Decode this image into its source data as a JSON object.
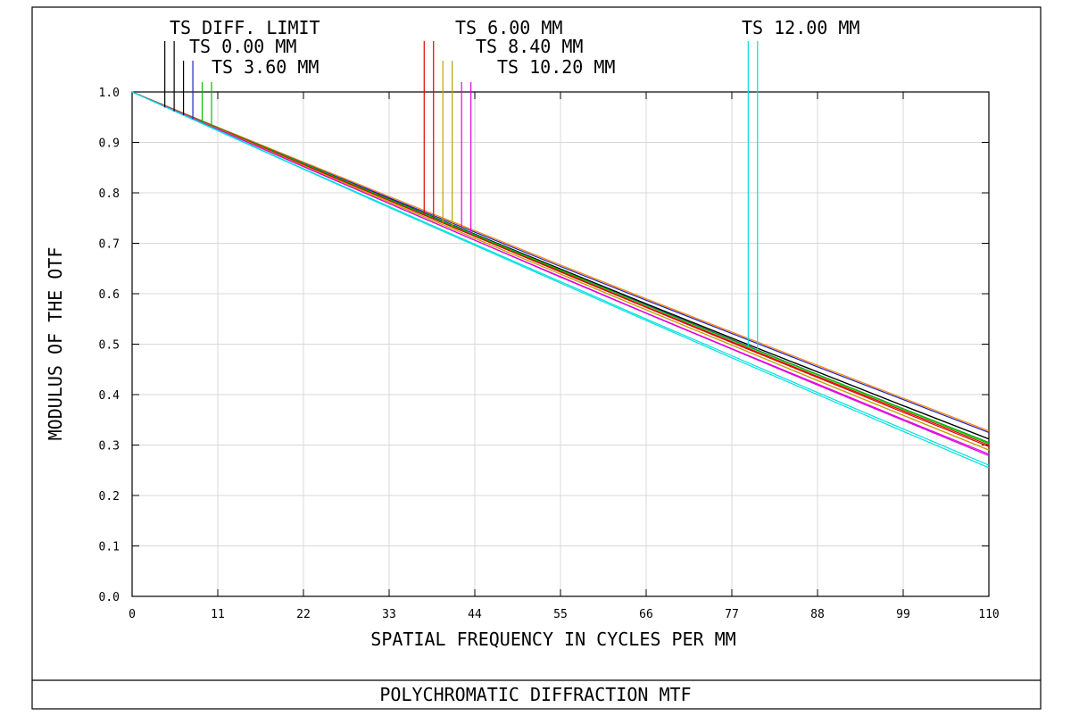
{
  "footer_title": "POLYCHROMATIC DIFFRACTION MTF",
  "chart_data": {
    "type": "line",
    "xlabel": "SPATIAL FREQUENCY IN CYCLES PER MM",
    "ylabel": "MODULUS OF THE OTF",
    "xlim": [
      0,
      110
    ],
    "ylim": [
      0,
      1.0
    ],
    "x_ticks": [
      "0",
      "11",
      "22",
      "33",
      "44",
      "55",
      "66",
      "77",
      "88",
      "99",
      "110"
    ],
    "y_ticks": [
      "0.0",
      "0.1",
      "0.2",
      "0.3",
      "0.4",
      "0.5",
      "0.6",
      "0.7",
      "0.8",
      "0.9",
      "1.0"
    ],
    "grid": true,
    "legend": [
      {
        "label": "TS DIFF. LIMIT",
        "color": "#000000"
      },
      {
        "label": "TS 0.00 MM",
        "color": "#000000"
      },
      {
        "label": "TS 3.60 MM",
        "color": "#2020c0"
      },
      {
        "label": "TS 6.00 MM",
        "color": "#00c000"
      },
      {
        "label": "TS 8.40 MM",
        "color": "#e00000"
      },
      {
        "label": "TS 10.20 MM",
        "color": "#c0a000"
      },
      {
        "label": "TS 12.00 MM",
        "color": "#e000e0"
      }
    ],
    "x": [
      0,
      11,
      22,
      33,
      44,
      55,
      66,
      77,
      88,
      99,
      110
    ],
    "series": [
      {
        "color": "#000000",
        "values": [
          1.0,
          0.929,
          0.858,
          0.788,
          0.718,
          0.649,
          0.58,
          0.512,
          0.445,
          0.378,
          0.312
        ]
      },
      {
        "color": "#000000",
        "values": [
          1.0,
          0.929,
          0.858,
          0.788,
          0.718,
          0.649,
          0.58,
          0.512,
          0.445,
          0.378,
          0.312
        ]
      },
      {
        "color": "#ff8000",
        "values": [
          1.0,
          0.93,
          0.861,
          0.793,
          0.725,
          0.657,
          0.59,
          0.524,
          0.458,
          0.393,
          0.328
        ]
      },
      {
        "color": "#2020c0",
        "values": [
          1.0,
          0.929,
          0.859,
          0.79,
          0.722,
          0.654,
          0.587,
          0.521,
          0.455,
          0.39,
          0.325
        ]
      },
      {
        "color": "#2020c0",
        "values": [
          1.0,
          0.929,
          0.858,
          0.787,
          0.717,
          0.647,
          0.578,
          0.509,
          0.44,
          0.372,
          0.305
        ]
      },
      {
        "color": "#00c000",
        "values": [
          1.0,
          0.928,
          0.857,
          0.786,
          0.716,
          0.646,
          0.577,
          0.508,
          0.44,
          0.372,
          0.305
        ]
      },
      {
        "color": "#00c000",
        "values": [
          1.0,
          0.929,
          0.858,
          0.787,
          0.717,
          0.647,
          0.577,
          0.508,
          0.439,
          0.371,
          0.303
        ]
      },
      {
        "color": "#e00000",
        "values": [
          1.0,
          0.928,
          0.856,
          0.785,
          0.714,
          0.644,
          0.574,
          0.505,
          0.436,
          0.368,
          0.3
        ]
      },
      {
        "color": "#e00000",
        "values": [
          1.0,
          0.928,
          0.856,
          0.785,
          0.714,
          0.643,
          0.573,
          0.503,
          0.434,
          0.365,
          0.297
        ]
      },
      {
        "color": "#c0a000",
        "values": [
          1.0,
          0.927,
          0.854,
          0.782,
          0.71,
          0.639,
          0.568,
          0.498,
          0.428,
          0.359,
          0.29
        ]
      },
      {
        "color": "#c0a000",
        "values": [
          1.0,
          0.927,
          0.854,
          0.782,
          0.71,
          0.639,
          0.568,
          0.498,
          0.428,
          0.359,
          0.29
        ]
      },
      {
        "color": "#e000e0",
        "values": [
          1.0,
          0.926,
          0.852,
          0.779,
          0.706,
          0.634,
          0.562,
          0.491,
          0.421,
          0.351,
          0.282
        ]
      },
      {
        "color": "#e000e0",
        "values": [
          1.0,
          0.926,
          0.852,
          0.779,
          0.706,
          0.633,
          0.561,
          0.49,
          0.419,
          0.349,
          0.279
        ]
      },
      {
        "color": "#00e0e0",
        "values": [
          1.0,
          0.924,
          0.848,
          0.773,
          0.698,
          0.624,
          0.55,
          0.477,
          0.404,
          0.332,
          0.26
        ]
      },
      {
        "color": "#00e0e0",
        "values": [
          1.0,
          0.923,
          0.847,
          0.771,
          0.696,
          0.621,
          0.547,
          0.473,
          0.4,
          0.327,
          0.255
        ]
      }
    ],
    "legend_markers": [
      {
        "color": "#000000",
        "x": 4.2
      },
      {
        "color": "#000000",
        "x": 5.4
      },
      {
        "color": "#000000",
        "x": 6.6
      },
      {
        "color": "#2020c0",
        "x": 7.8
      },
      {
        "color": "#00c000",
        "x": 9.0
      },
      {
        "color": "#00c000",
        "x": 10.2
      },
      {
        "color": "#e00000",
        "x": 37.5
      },
      {
        "color": "#e00000",
        "x": 38.7
      },
      {
        "color": "#c0a000",
        "x": 39.9
      },
      {
        "color": "#c0a000",
        "x": 41.1
      },
      {
        "color": "#e000e0",
        "x": 42.3
      },
      {
        "color": "#e000e0",
        "x": 43.5
      },
      {
        "color": "#00e0e0",
        "x": 79.1
      },
      {
        "color": "#00e0e0",
        "x": 80.3
      }
    ]
  }
}
